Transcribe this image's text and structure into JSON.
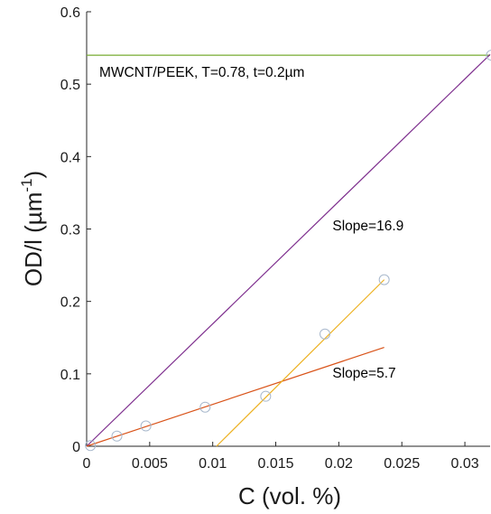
{
  "chart_data": {
    "type": "scatter",
    "xlabel": "C (vol. %)",
    "ylabel_main": "OD/l (µm",
    "ylabel_sup": "-1",
    "ylabel_close": ")",
    "xlim": [
      0,
      0.032
    ],
    "ylim": [
      0,
      0.6
    ],
    "xticks": [
      0,
      0.005,
      0.01,
      0.015,
      0.02,
      0.025,
      0.03
    ],
    "xtick_labels": [
      "0",
      "0.005",
      "0.01",
      "0.015",
      "0.02",
      "0.025",
      "0.03"
    ],
    "yticks": [
      0,
      0.1,
      0.2,
      0.3,
      0.4,
      0.5,
      0.6
    ],
    "ytick_labels": [
      "0",
      "0.1",
      "0.2",
      "0.3",
      "0.4",
      "0.5",
      "0.6"
    ],
    "grid": false,
    "points": {
      "x": [
        0.0003,
        0.0024,
        0.0047,
        0.0094,
        0.0142,
        0.0189,
        0.0236,
        0.0321
      ],
      "y": [
        0.001,
        0.014,
        0.028,
        0.054,
        0.069,
        0.155,
        0.23,
        0.54
      ],
      "color": "#a8b8cc"
    },
    "lines": [
      {
        "x": [
          0,
          0.032
        ],
        "y": [
          0.54,
          0.54
        ],
        "color": "#77ac30"
      },
      {
        "x": [
          0,
          0.032
        ],
        "y": [
          0,
          0.541
        ],
        "color": "#7e2f8e"
      },
      {
        "x": [
          0,
          0.0236
        ],
        "y": [
          0,
          0.1365
        ],
        "color": "#d95319"
      },
      {
        "x": [
          0.0103,
          0.0236
        ],
        "y": [
          0,
          0.23
        ],
        "color": "#edb120"
      }
    ],
    "annotations": [
      {
        "text": "MWCNT/PEEK, T=0.78, t=0.2µm",
        "x": 0.001,
        "y": 0.51
      },
      {
        "text": "Slope=16.9",
        "x": 0.0195,
        "y": 0.298
      },
      {
        "text": "Slope=5.7",
        "x": 0.0195,
        "y": 0.095
      }
    ]
  }
}
